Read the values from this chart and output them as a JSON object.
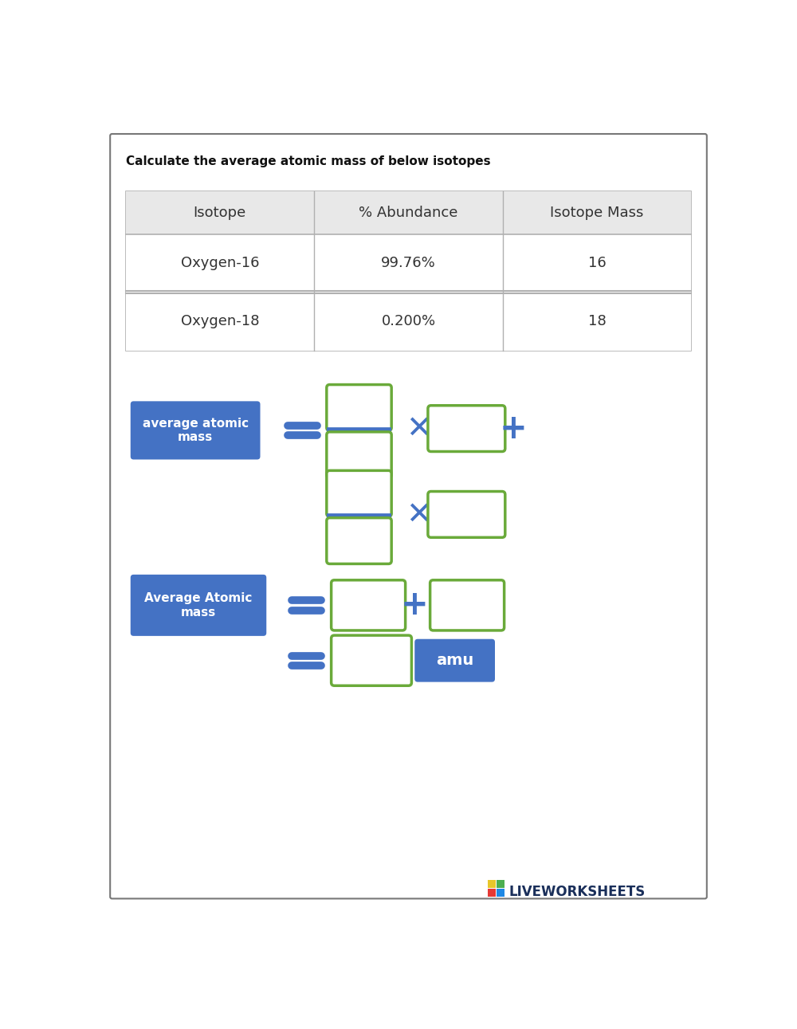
{
  "title": "Calculate the average atomic mass of below isotopes",
  "table_headers": [
    "Isotope",
    "% Abundance",
    "Isotope Mass"
  ],
  "table_rows": [
    [
      "Oxygen-16",
      "99.76%",
      "16"
    ],
    [
      "Oxygen-18",
      "0.200%",
      "18"
    ]
  ],
  "bg_color": "#ffffff",
  "border_color": "#b0b0b0",
  "table_header_bg": "#e8e8e8",
  "table_row_bg": "#ffffff",
  "blue_btn_color": "#4472c4",
  "blue_btn_text": "#ffffff",
  "green_box_color": "#6aaa3a",
  "blue_symbol_color": "#4472c4",
  "label1_text": "average atomic\nmass",
  "label2_text": "Average Atomic\nmass",
  "amu_text": "amu",
  "outer_border_color": "#777777",
  "liveworksheets_text": "LIVEWORKSHEETS",
  "lw_sq_colors": [
    "#e8c82a",
    "#27ae60",
    "#e74c3c",
    "#3498db"
  ]
}
